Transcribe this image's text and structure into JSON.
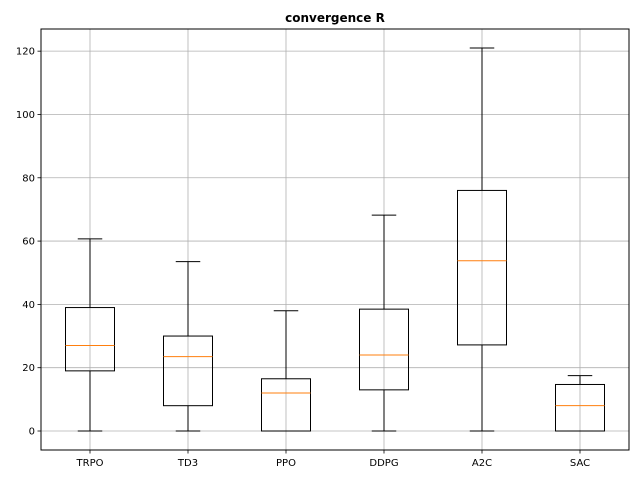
{
  "chart_data": {
    "type": "box",
    "title": "convergence R",
    "xlabel": "",
    "ylabel": "",
    "categories": [
      "TRPO",
      "TD3",
      "PPO",
      "DDPG",
      "A2C",
      "SAC"
    ],
    "boxes": [
      {
        "label": "TRPO",
        "whisker_low": 0,
        "q1": 19,
        "median": 27,
        "q3": 39,
        "whisker_high": 60.7
      },
      {
        "label": "TD3",
        "whisker_low": 0,
        "q1": 8,
        "median": 23.5,
        "q3": 30,
        "whisker_high": 53.5
      },
      {
        "label": "PPO",
        "whisker_low": 0,
        "q1": 0,
        "median": 12,
        "q3": 16.5,
        "whisker_high": 38
      },
      {
        "label": "DDPG",
        "whisker_low": 0,
        "q1": 13,
        "median": 24,
        "q3": 38.5,
        "whisker_high": 68.2
      },
      {
        "label": "A2C",
        "whisker_low": 0,
        "q1": 27.2,
        "median": 53.8,
        "q3": 76,
        "whisker_high": 121
      },
      {
        "label": "SAC",
        "whisker_low": 0,
        "q1": 0,
        "median": 8,
        "q3": 14.7,
        "whisker_high": 17.5
      }
    ],
    "yticks": [
      0,
      20,
      40,
      60,
      80,
      100,
      120
    ],
    "ylim": [
      -6,
      127
    ],
    "grid": true,
    "colors": {
      "box": "#000000",
      "median": "#ff7f0e",
      "grid": "#b0b0b0"
    }
  }
}
